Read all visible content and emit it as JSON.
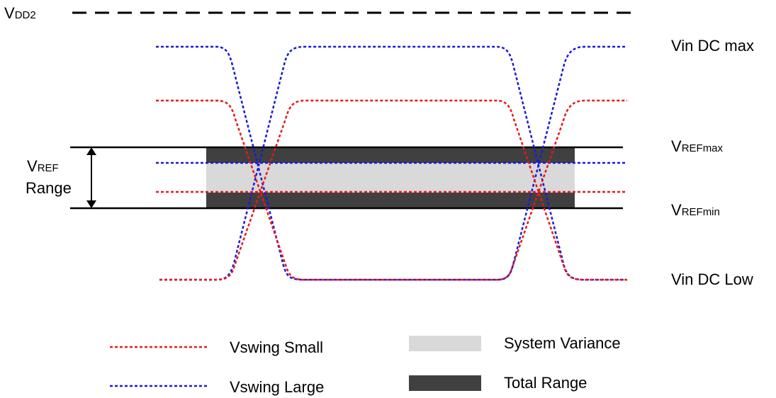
{
  "labels": {
    "vdd2_main": "V",
    "vdd2_sub": "DD2",
    "vref_range_main": "V",
    "vref_range_sub": "REF",
    "vref_range_word": "Range",
    "vin_dc_max": "Vin DC max",
    "vrefmax_main": "V",
    "vrefmax_sub": "REFmax",
    "vrefmin_main": "V",
    "vrefmin_sub": "REFmin",
    "vin_dc_low": "Vin DC Low"
  },
  "legend": {
    "vswing_small": "Vswing Small",
    "vswing_large": "Vswing Large",
    "system_variance": "System Variance",
    "total_range": "Total Range"
  },
  "colors": {
    "vswing_small": "#e8191c",
    "vswing_large": "#1a1adc",
    "system_variance": "#d9d9d9",
    "total_range": "#404040",
    "lines": "#000000"
  }
}
